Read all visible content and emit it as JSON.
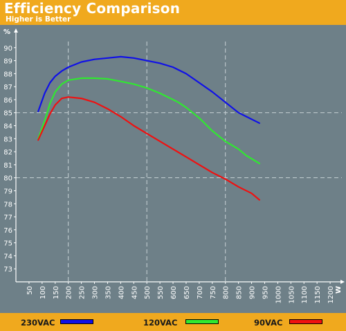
{
  "title": "Efficiency Comparison",
  "subtitle": "Higher is Better",
  "chart_data": {
    "type": "line",
    "y_unit": "%",
    "x_unit": "W",
    "xlim": [
      0,
      1250
    ],
    "ylim": [
      72,
      91
    ],
    "x_ticks": [
      50,
      100,
      150,
      200,
      250,
      300,
      350,
      400,
      450,
      500,
      550,
      600,
      650,
      700,
      750,
      800,
      850,
      900,
      950,
      1000,
      1050,
      1100,
      1150,
      1200
    ],
    "y_ticks": [
      73,
      74,
      75,
      76,
      77,
      78,
      79,
      80,
      81,
      82,
      83,
      84,
      85,
      86,
      87,
      88,
      89,
      90
    ],
    "grid": {
      "x_dashed_lines": [
        200,
        500,
        800
      ],
      "y_dashed_lines": [
        80,
        85
      ]
    },
    "legend_position": "bottom",
    "series": [
      {
        "name": "230VAC",
        "color": "#1010e8",
        "points": [
          [
            85,
            85.1
          ],
          [
            110,
            86.5
          ],
          [
            130,
            87.3
          ],
          [
            150,
            87.8
          ],
          [
            175,
            88.2
          ],
          [
            200,
            88.5
          ],
          [
            250,
            88.9
          ],
          [
            300,
            89.1
          ],
          [
            350,
            89.2
          ],
          [
            400,
            89.3
          ],
          [
            450,
            89.2
          ],
          [
            500,
            89.0
          ],
          [
            550,
            88.8
          ],
          [
            600,
            88.5
          ],
          [
            650,
            88.0
          ],
          [
            700,
            87.3
          ],
          [
            750,
            86.6
          ],
          [
            800,
            85.8
          ],
          [
            850,
            85.0
          ],
          [
            880,
            84.7
          ],
          [
            930,
            84.2
          ]
        ]
      },
      {
        "name": "120VAC",
        "color": "#30e830",
        "points": [
          [
            85,
            83.0
          ],
          [
            110,
            84.4
          ],
          [
            130,
            85.7
          ],
          [
            150,
            86.6
          ],
          [
            175,
            87.2
          ],
          [
            200,
            87.5
          ],
          [
            250,
            87.65
          ],
          [
            300,
            87.65
          ],
          [
            350,
            87.6
          ],
          [
            400,
            87.4
          ],
          [
            450,
            87.2
          ],
          [
            500,
            86.9
          ],
          [
            550,
            86.5
          ],
          [
            600,
            86.0
          ],
          [
            620,
            85.8
          ],
          [
            650,
            85.4
          ],
          [
            700,
            84.6
          ],
          [
            750,
            83.6
          ],
          [
            800,
            82.8
          ],
          [
            850,
            82.2
          ],
          [
            880,
            81.7
          ],
          [
            930,
            81.1
          ]
        ]
      },
      {
        "name": "90VAC",
        "color": "#f01010",
        "points": [
          [
            85,
            82.9
          ],
          [
            110,
            84.0
          ],
          [
            130,
            84.9
          ],
          [
            150,
            85.6
          ],
          [
            175,
            86.1
          ],
          [
            200,
            86.2
          ],
          [
            250,
            86.1
          ],
          [
            300,
            85.8
          ],
          [
            350,
            85.3
          ],
          [
            400,
            84.7
          ],
          [
            450,
            84.0
          ],
          [
            500,
            83.4
          ],
          [
            550,
            82.8
          ],
          [
            600,
            82.2
          ],
          [
            650,
            81.6
          ],
          [
            700,
            81.0
          ],
          [
            750,
            80.4
          ],
          [
            800,
            79.9
          ],
          [
            850,
            79.3
          ],
          [
            900,
            78.8
          ],
          [
            930,
            78.3
          ]
        ]
      }
    ]
  }
}
